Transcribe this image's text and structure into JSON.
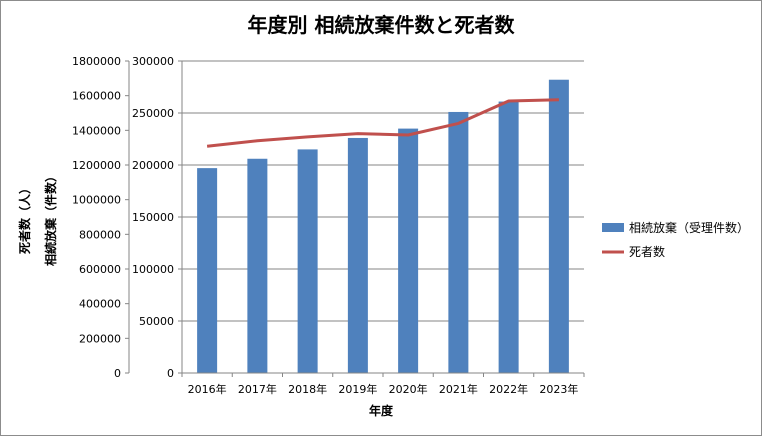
{
  "chart_data": {
    "type": "bar",
    "title": "年度別 相続放棄件数と死者数",
    "xlabel": "年度",
    "categories": [
      "2016年",
      "2017年",
      "2018年",
      "2019年",
      "2020年",
      "2021年",
      "2022年",
      "2023年"
    ],
    "series": [
      {
        "name": "相続放棄（受理件数）",
        "type": "bar",
        "axis": "right-inner",
        "color": "#4f81bd",
        "values": [
          197000,
          206000,
          215000,
          226000,
          235000,
          251000,
          261000,
          282000
        ]
      },
      {
        "name": "死者数",
        "type": "line",
        "axis": "left-outer",
        "color": "#c0504d",
        "values": [
          1308000,
          1340000,
          1362000,
          1381000,
          1373000,
          1440000,
          1569000,
          1576000
        ]
      }
    ],
    "axes": {
      "left_outer": {
        "label": "死者数（人）",
        "ylim": [
          0,
          1800000
        ],
        "ticks": [
          "0",
          "200000",
          "400000",
          "600000",
          "800000",
          "1000000",
          "1200000",
          "1400000",
          "1600000",
          "1800000"
        ]
      },
      "right_inner": {
        "label": "相続放棄（件数）",
        "ylim": [
          0,
          300000
        ],
        "ticks": [
          "0",
          "50000",
          "100000",
          "150000",
          "200000",
          "250000",
          "300000"
        ]
      }
    },
    "grid": true,
    "legend_position": "right"
  }
}
